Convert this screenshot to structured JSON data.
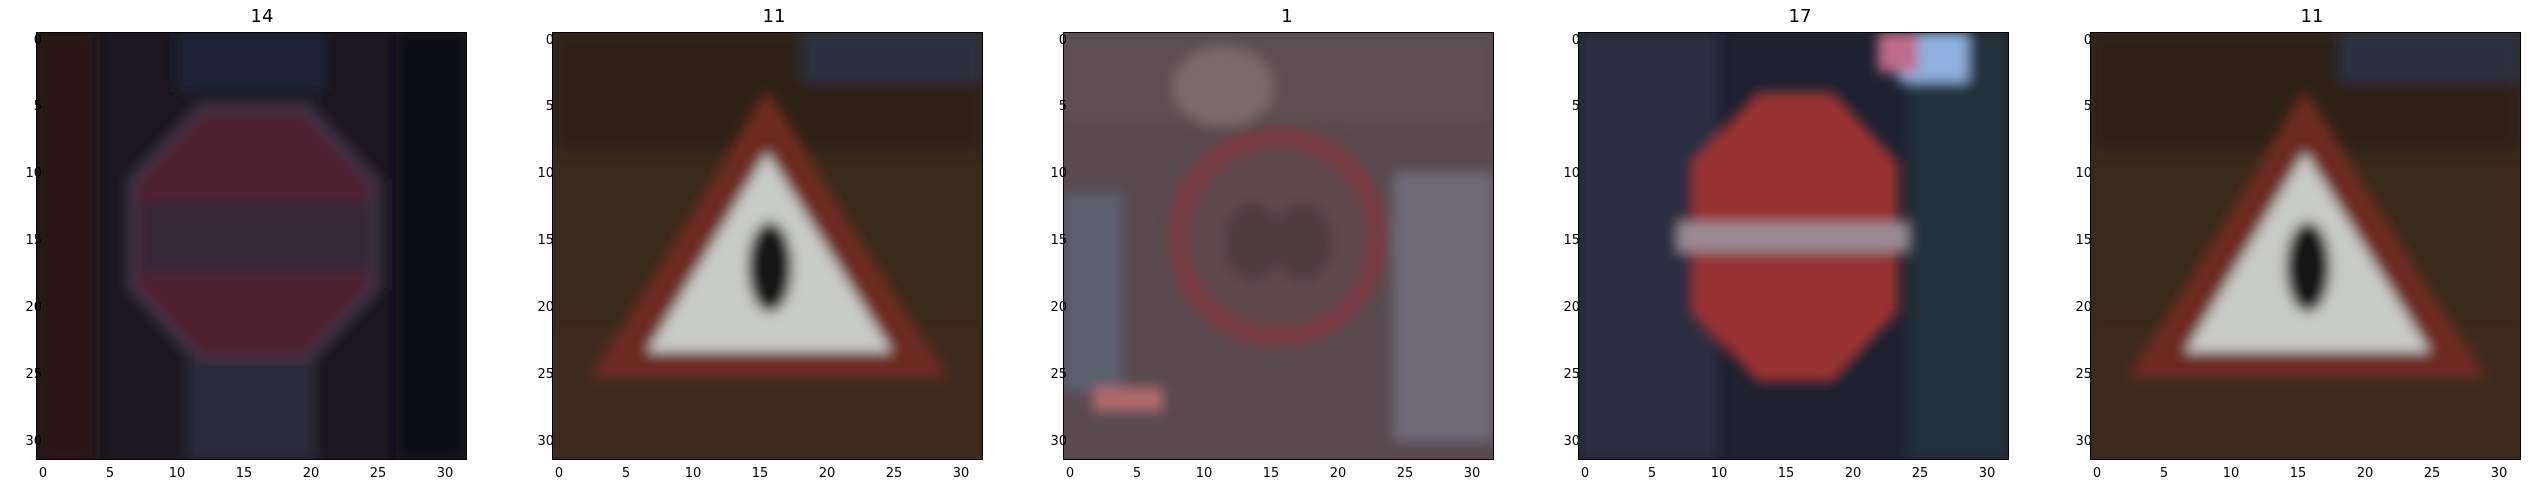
{
  "panels": [
    {
      "title": "14"
    },
    {
      "title": "11"
    },
    {
      "title": "1"
    },
    {
      "title": "17"
    },
    {
      "title": "11"
    }
  ],
  "axes": {
    "x_ticks": [
      "0",
      "5",
      "10",
      "15",
      "20",
      "25",
      "30"
    ],
    "y_ticks": [
      "0",
      "5",
      "10",
      "15",
      "20",
      "25",
      "30"
    ]
  },
  "images": [
    {
      "name": "stop-sign",
      "description_color": "#5a1e26"
    },
    {
      "name": "triangle-warning-sign",
      "description_color": "#7a2a24"
    },
    {
      "name": "speed-limit-sign",
      "description_color": "#6a3a3a"
    },
    {
      "name": "no-entry-sign",
      "description_color": "#8c2e2b"
    },
    {
      "name": "triangle-warning-sign",
      "description_color": "#7a2a24"
    }
  ]
}
